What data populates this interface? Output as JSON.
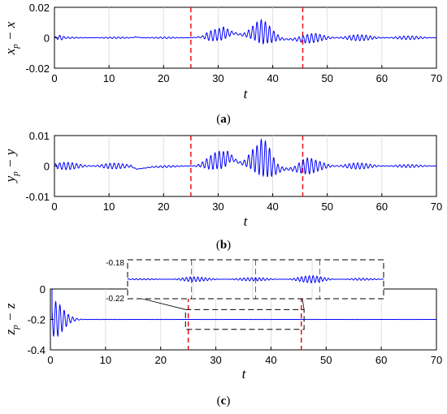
{
  "chart_data": [
    {
      "type": "line",
      "panel": "a",
      "caption_label": "a",
      "xlabel": "t",
      "ylabel": "x_p − x",
      "xlim": [
        0,
        70
      ],
      "ylim": [
        -0.02,
        0.02
      ],
      "xticks": [
        0,
        10,
        20,
        30,
        40,
        50,
        60,
        70
      ],
      "yticks": [
        0.02,
        0,
        -0.02
      ],
      "ytick_labels": [
        "0.02",
        "0",
        "-0.02"
      ],
      "grid": "vertical",
      "marker_lines_x": [
        25,
        45.5
      ],
      "series": [
        {
          "color": "#0000ff",
          "x": [
            0,
            1,
            2,
            14,
            15,
            16,
            24,
            25,
            27,
            28,
            30,
            31,
            32,
            33,
            34,
            35,
            36,
            37,
            38,
            39,
            40,
            41,
            42,
            44,
            45.5,
            48,
            52,
            56,
            60,
            65,
            70
          ],
          "amp": [
            0.0008,
            0.002,
            0.0005,
            0.0005,
            0.0015,
            0.0005,
            0.0005,
            0.0005,
            0.001,
            0.003,
            0.004,
            0.006,
            0.006,
            0.005,
            0.006,
            0.005,
            0.006,
            0.007,
            0.008,
            0.007,
            0.006,
            0.005,
            0.004,
            0.003,
            0.003,
            0.003,
            0.0025,
            0.002,
            0.0015,
            0.0012,
            0.001
          ],
          "mid": [
            0,
            0,
            0,
            0,
            0.0005,
            0,
            0,
            0,
            0.0005,
            0.001,
            0.002,
            0.003,
            0.003,
            0.003,
            0.002,
            0.002,
            0.003,
            0.004,
            0.004,
            0.003,
            0.001,
            0,
            -0.001,
            -0.001,
            -0.001,
            0,
            0,
            0,
            0,
            0,
            0
          ]
        }
      ]
    },
    {
      "type": "line",
      "panel": "b",
      "caption_label": "b",
      "xlabel": "t",
      "ylabel": "y_p − y",
      "xlim": [
        0,
        70
      ],
      "ylim": [
        -0.01,
        0.01
      ],
      "xticks": [
        0,
        10,
        20,
        30,
        40,
        50,
        60,
        70
      ],
      "yticks": [
        0.01,
        0,
        -0.01
      ],
      "ytick_labels": [
        "0.01",
        "0",
        "-0.01"
      ],
      "grid": "vertical",
      "marker_lines_x": [
        25,
        45.5
      ],
      "series": [
        {
          "color": "#0000ff",
          "x": [
            0,
            5,
            10,
            14,
            15,
            16,
            18,
            24,
            26,
            28,
            30,
            31,
            32,
            33,
            34,
            35,
            36,
            37,
            38,
            39,
            40,
            41,
            42,
            44,
            46,
            48,
            52,
            56,
            60,
            65,
            70
          ],
          "amp": [
            0.0012,
            0.0012,
            0.001,
            0.0008,
            0.0006,
            0.0004,
            0.0003,
            0.0004,
            0.0008,
            0.002,
            0.003,
            0.004,
            0.005,
            0.004,
            0.004,
            0.004,
            0.005,
            0.005,
            0.006,
            0.006,
            0.005,
            0.004,
            0.004,
            0.003,
            0.003,
            0.002,
            0.0015,
            0.001,
            0.0007,
            0.0005,
            0.0004
          ],
          "mid": [
            0,
            0,
            0,
            0,
            -0.001,
            -0.0008,
            -0.0003,
            0,
            0,
            0.0008,
            0.002,
            0.002,
            0.003,
            0.002,
            0.001,
            0.001,
            0.002,
            0.002,
            0.003,
            0.002,
            0,
            -0.001,
            -0.001,
            -0.001,
            0,
            0,
            0,
            0,
            0,
            0,
            0
          ]
        }
      ]
    },
    {
      "type": "line",
      "panel": "c",
      "caption_label": "c",
      "xlabel": "t",
      "ylabel": "z_p − z",
      "xlim": [
        0,
        70
      ],
      "ylim": [
        -0.4,
        0
      ],
      "xticks": [
        0,
        10,
        20,
        30,
        40,
        50,
        60,
        70
      ],
      "yticks": [
        0,
        -0.2,
        -0.4
      ],
      "ytick_labels": [
        "0",
        "-0.2",
        "-0.4"
      ],
      "grid": "vertical",
      "marker_lines_x": [
        25,
        45.5
      ],
      "zoom_box": {
        "x": [
          24.5,
          46
        ],
        "y": [
          -0.265,
          -0.135
        ]
      },
      "inset": {
        "ytick_labels": [
          "-0.18",
          "-0.22"
        ],
        "ylim": [
          -0.22,
          -0.18
        ],
        "xlim": [
          24.5,
          46
        ]
      },
      "series": [
        {
          "color": "#0000ff",
          "x": [
            0.3,
            0.8,
            1.5,
            2.5,
            3.5,
            5,
            7,
            10,
            25,
            70
          ],
          "amp": [
            0.15,
            0.15,
            0.11,
            0.06,
            0.03,
            0.012,
            0.004,
            0.001,
            0.001,
            0.0008
          ],
          "mid": [
            -0.2,
            -0.2,
            -0.2,
            -0.2,
            -0.2,
            -0.2,
            -0.2,
            -0.2,
            -0.2,
            -0.2
          ]
        }
      ],
      "inset_series": {
        "x": [
          24.5,
          26,
          27.5,
          28.5,
          29.5,
          30.5,
          31.5,
          32.5,
          33.5,
          35,
          36.5,
          38,
          39,
          40,
          41,
          42,
          43,
          44,
          45,
          46
        ],
        "amp": [
          0.0008,
          0.001,
          0.0025,
          0.003,
          0.004,
          0.0035,
          0.003,
          0.004,
          0.003,
          0.0025,
          0.003,
          0.0035,
          0.005,
          0.0055,
          0.005,
          0.004,
          0.003,
          0.002,
          0.001,
          0.0005
        ]
      }
    }
  ]
}
